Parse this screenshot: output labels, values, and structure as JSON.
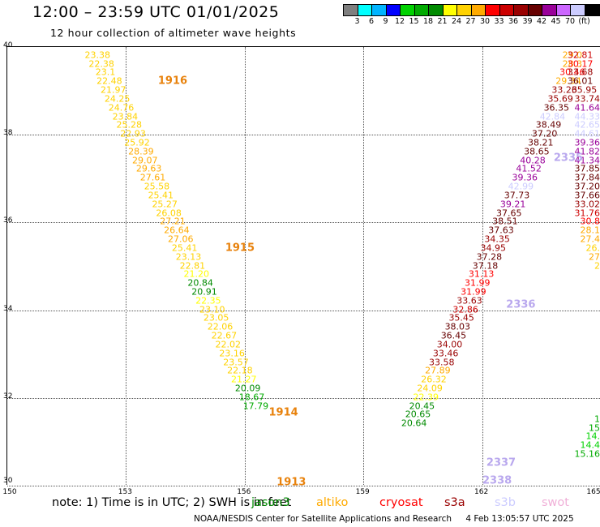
{
  "header": {
    "title": "12:00 – 23:59 UTC 01/01/2025",
    "subtitle": "12 hour collection of altimeter wave heights"
  },
  "colorbar": {
    "unit": "(ft)",
    "colors": [
      "#7f7f7f",
      "#00ffff",
      "#00b4ff",
      "#0000ff",
      "#00d200",
      "#00aa00",
      "#008a00",
      "#ffff00",
      "#ffd200",
      "#ffaa00",
      "#ff0000",
      "#cc0000",
      "#990000",
      "#660000",
      "#990099",
      "#cc66ff",
      "#ccccff",
      "#000000"
    ],
    "tick_labels": [
      "3",
      "6",
      "9",
      "12",
      "15",
      "18",
      "21",
      "24",
      "27",
      "30",
      "33",
      "36",
      "39",
      "42",
      "45",
      "70"
    ]
  },
  "axes": {
    "x_ticks": [
      "150",
      "153",
      "156",
      "159",
      "162",
      "165"
    ],
    "y_ticks": [
      "40",
      "38",
      "36",
      "34",
      "32",
      "30"
    ]
  },
  "orbit_labels": [
    {
      "text": "1916",
      "lon": 154.2,
      "lat": 39.2,
      "color": "orange"
    },
    {
      "text": "1915",
      "lon": 155.9,
      "lat": 35.4,
      "color": "orange"
    },
    {
      "text": "1914",
      "lon": 157.0,
      "lat": 31.65,
      "color": "orange"
    },
    {
      "text": "1913",
      "lon": 157.2,
      "lat": 30.05,
      "color": "orange"
    },
    {
      "text": "2336",
      "lon": 163.0,
      "lat": 34.1,
      "color": "lilac"
    },
    {
      "text": "2337",
      "lon": 162.5,
      "lat": 30.5,
      "color": "lilac"
    },
    {
      "text": "2338",
      "lon": 162.4,
      "lat": 30.1,
      "color": "lilac"
    },
    {
      "text": "2335",
      "lon": 164.2,
      "lat": 37.45,
      "color": "lilac"
    }
  ],
  "wave_tracks": [
    {
      "name": "track-1916-1915-1914-1913",
      "points": [
        {
          "lon": 152.3,
          "lat": 39.8,
          "value": "23.38",
          "color": "#ffd200"
        },
        {
          "lon": 152.4,
          "lat": 39.6,
          "value": "22.38",
          "color": "#ffd200"
        },
        {
          "lon": 152.5,
          "lat": 39.4,
          "value": "23.1",
          "color": "#ffd200"
        },
        {
          "lon": 152.6,
          "lat": 39.2,
          "value": "22.48",
          "color": "#ffd200"
        },
        {
          "lon": 152.7,
          "lat": 39.0,
          "value": "21.97",
          "color": "#ffd200"
        },
        {
          "lon": 152.8,
          "lat": 38.8,
          "value": "24.25",
          "color": "#ffd200"
        },
        {
          "lon": 152.9,
          "lat": 38.6,
          "value": "24.76",
          "color": "#ffd200"
        },
        {
          "lon": 153.0,
          "lat": 38.4,
          "value": "23.84",
          "color": "#ffd200"
        },
        {
          "lon": 153.1,
          "lat": 38.2,
          "value": "25.28",
          "color": "#ffd200"
        },
        {
          "lon": 153.2,
          "lat": 38.0,
          "value": "22.93",
          "color": "#ffd200"
        },
        {
          "lon": 153.3,
          "lat": 37.8,
          "value": "25.92",
          "color": "#ffd200"
        },
        {
          "lon": 153.4,
          "lat": 37.6,
          "value": "28.39",
          "color": "#ffaa00"
        },
        {
          "lon": 153.5,
          "lat": 37.4,
          "value": "29.07",
          "color": "#ffaa00"
        },
        {
          "lon": 153.6,
          "lat": 37.2,
          "value": "29.63",
          "color": "#ffaa00"
        },
        {
          "lon": 153.7,
          "lat": 37.0,
          "value": "27.61",
          "color": "#ffaa00"
        },
        {
          "lon": 153.8,
          "lat": 36.8,
          "value": "25.58",
          "color": "#ffd200"
        },
        {
          "lon": 153.9,
          "lat": 36.6,
          "value": "25.41",
          "color": "#ffd200"
        },
        {
          "lon": 154.0,
          "lat": 36.4,
          "value": "25.27",
          "color": "#ffd200"
        },
        {
          "lon": 154.1,
          "lat": 36.2,
          "value": "26.08",
          "color": "#ffd200"
        },
        {
          "lon": 154.2,
          "lat": 36.0,
          "value": "27.21",
          "color": "#ffaa00"
        },
        {
          "lon": 154.3,
          "lat": 35.8,
          "value": "26.64",
          "color": "#ffaa00"
        },
        {
          "lon": 154.4,
          "lat": 35.6,
          "value": "27.06",
          "color": "#ffaa00"
        },
        {
          "lon": 154.5,
          "lat": 35.4,
          "value": "25.41",
          "color": "#ffd200"
        },
        {
          "lon": 154.6,
          "lat": 35.2,
          "value": "23.13",
          "color": "#ffd200"
        },
        {
          "lon": 154.7,
          "lat": 35.0,
          "value": "22.81",
          "color": "#ffd200"
        },
        {
          "lon": 154.8,
          "lat": 34.8,
          "value": "21.20",
          "color": "#ffff00"
        },
        {
          "lon": 154.9,
          "lat": 34.6,
          "value": "20.84",
          "color": "#008a00"
        },
        {
          "lon": 155.0,
          "lat": 34.4,
          "value": "20.91",
          "color": "#008a00"
        },
        {
          "lon": 155.1,
          "lat": 34.2,
          "value": "22.35",
          "color": "#ffff00"
        },
        {
          "lon": 155.2,
          "lat": 34.0,
          "value": "23.10",
          "color": "#ffd200"
        },
        {
          "lon": 155.3,
          "lat": 33.8,
          "value": "23.05",
          "color": "#ffd200"
        },
        {
          "lon": 155.4,
          "lat": 33.6,
          "value": "22.06",
          "color": "#ffd200"
        },
        {
          "lon": 155.5,
          "lat": 33.4,
          "value": "22.67",
          "color": "#ffd200"
        },
        {
          "lon": 155.6,
          "lat": 33.2,
          "value": "22.02",
          "color": "#ffd200"
        },
        {
          "lon": 155.7,
          "lat": 33.0,
          "value": "23.16",
          "color": "#ffd200"
        },
        {
          "lon": 155.8,
          "lat": 32.8,
          "value": "23.57",
          "color": "#ffd200"
        },
        {
          "lon": 155.9,
          "lat": 32.6,
          "value": "22.18",
          "color": "#ffd200"
        },
        {
          "lon": 156.0,
          "lat": 32.4,
          "value": "21.27",
          "color": "#ffff00"
        },
        {
          "lon": 156.1,
          "lat": 32.2,
          "value": "20.09",
          "color": "#008a00"
        },
        {
          "lon": 156.2,
          "lat": 32.0,
          "value": "18.67",
          "color": "#00aa00"
        },
        {
          "lon": 156.3,
          "lat": 31.8,
          "value": "17.79",
          "color": "#00aa00"
        }
      ]
    },
    {
      "name": "track-2336-2337-2338",
      "points": [
        {
          "lon": 164.3,
          "lat": 39.8,
          "value": "29.0",
          "color": "#ffaa00"
        },
        {
          "lon": 164.3,
          "lat": 39.6,
          "value": "28.3",
          "color": "#ffaa00"
        },
        {
          "lon": 164.3,
          "lat": 39.4,
          "value": "30.46",
          "color": "#ff0000"
        },
        {
          "lon": 164.2,
          "lat": 39.2,
          "value": "29.34",
          "color": "#ffaa00"
        },
        {
          "lon": 164.1,
          "lat": 39.0,
          "value": "33.26",
          "color": "#990000"
        },
        {
          "lon": 164.0,
          "lat": 38.8,
          "value": "35.69",
          "color": "#990000"
        },
        {
          "lon": 163.9,
          "lat": 38.6,
          "value": "36.35",
          "color": "#660000"
        },
        {
          "lon": 163.8,
          "lat": 38.4,
          "value": "42.84",
          "color": "#ccccff"
        },
        {
          "lon": 163.7,
          "lat": 38.2,
          "value": "38.49",
          "color": "#660000"
        },
        {
          "lon": 163.6,
          "lat": 38.0,
          "value": "37.20",
          "color": "#660000"
        },
        {
          "lon": 163.5,
          "lat": 37.8,
          "value": "38.21",
          "color": "#660000"
        },
        {
          "lon": 163.4,
          "lat": 37.6,
          "value": "38.65",
          "color": "#660000"
        },
        {
          "lon": 163.3,
          "lat": 37.4,
          "value": "40.28",
          "color": "#990099"
        },
        {
          "lon": 163.2,
          "lat": 37.2,
          "value": "41.52",
          "color": "#990099"
        },
        {
          "lon": 163.1,
          "lat": 37.0,
          "value": "39.36",
          "color": "#990099"
        },
        {
          "lon": 163.0,
          "lat": 36.8,
          "value": "42.99",
          "color": "#ccccff"
        },
        {
          "lon": 162.9,
          "lat": 36.6,
          "value": "37.73",
          "color": "#660000"
        },
        {
          "lon": 162.8,
          "lat": 36.4,
          "value": "39.21",
          "color": "#990099"
        },
        {
          "lon": 162.7,
          "lat": 36.2,
          "value": "37.65",
          "color": "#660000"
        },
        {
          "lon": 162.6,
          "lat": 36.0,
          "value": "38.51",
          "color": "#660000"
        },
        {
          "lon": 162.5,
          "lat": 35.8,
          "value": "37.63",
          "color": "#660000"
        },
        {
          "lon": 162.4,
          "lat": 35.6,
          "value": "34.35",
          "color": "#990000"
        },
        {
          "lon": 162.3,
          "lat": 35.4,
          "value": "34.95",
          "color": "#990000"
        },
        {
          "lon": 162.2,
          "lat": 35.2,
          "value": "37.28",
          "color": "#660000"
        },
        {
          "lon": 162.1,
          "lat": 35.0,
          "value": "37.18",
          "color": "#660000"
        },
        {
          "lon": 162.0,
          "lat": 34.8,
          "value": "31.13",
          "color": "#ff0000"
        },
        {
          "lon": 161.9,
          "lat": 34.6,
          "value": "31.99",
          "color": "#ff0000"
        },
        {
          "lon": 161.8,
          "lat": 34.4,
          "value": "31.99",
          "color": "#ff0000"
        },
        {
          "lon": 161.7,
          "lat": 34.2,
          "value": "33.63",
          "color": "#990000"
        },
        {
          "lon": 161.6,
          "lat": 34.0,
          "value": "32.86",
          "color": "#cc0000"
        },
        {
          "lon": 161.5,
          "lat": 33.8,
          "value": "35.45",
          "color": "#990000"
        },
        {
          "lon": 161.4,
          "lat": 33.6,
          "value": "38.03",
          "color": "#660000"
        },
        {
          "lon": 161.3,
          "lat": 33.4,
          "value": "36.45",
          "color": "#660000"
        },
        {
          "lon": 161.2,
          "lat": 33.2,
          "value": "34.00",
          "color": "#990000"
        },
        {
          "lon": 161.1,
          "lat": 33.0,
          "value": "33.46",
          "color": "#990000"
        },
        {
          "lon": 161.0,
          "lat": 32.8,
          "value": "33.58",
          "color": "#990000"
        },
        {
          "lon": 160.9,
          "lat": 32.6,
          "value": "27.89",
          "color": "#ffaa00"
        },
        {
          "lon": 160.8,
          "lat": 32.4,
          "value": "26.32",
          "color": "#ffd200"
        },
        {
          "lon": 160.7,
          "lat": 32.2,
          "value": "24.09",
          "color": "#ffd200"
        },
        {
          "lon": 160.6,
          "lat": 32.0,
          "value": "22.39",
          "color": "#ffff00"
        },
        {
          "lon": 160.5,
          "lat": 31.8,
          "value": "20.45",
          "color": "#008a00"
        },
        {
          "lon": 160.4,
          "lat": 31.6,
          "value": "20.65",
          "color": "#008a00"
        },
        {
          "lon": 160.3,
          "lat": 31.4,
          "value": "20.64",
          "color": "#008a00"
        }
      ]
    },
    {
      "name": "track-2335-right",
      "points": [
        {
          "lon": 164.5,
          "lat": 39.8,
          "value": "32.81",
          "color": "#cc0000"
        },
        {
          "lon": 164.5,
          "lat": 39.6,
          "value": "30.17",
          "color": "#ff0000"
        },
        {
          "lon": 164.5,
          "lat": 39.4,
          "value": "33.68",
          "color": "#990000"
        },
        {
          "lon": 164.5,
          "lat": 39.2,
          "value": "36.01",
          "color": "#660000"
        },
        {
          "lon": 164.6,
          "lat": 39.0,
          "value": "35.95",
          "color": "#990000"
        },
        {
          "lon": 164.7,
          "lat": 38.8,
          "value": "33.74",
          "color": "#990000"
        },
        {
          "lon": 164.8,
          "lat": 38.6,
          "value": "41.64",
          "color": "#990099"
        },
        {
          "lon": 164.9,
          "lat": 38.4,
          "value": "44.33",
          "color": "#ccccff"
        },
        {
          "lon": 165.0,
          "lat": 38.2,
          "value": "42.65",
          "color": "#ccccff"
        },
        {
          "lon": 165.0,
          "lat": 38.0,
          "value": "44.61",
          "color": "#ccccff"
        },
        {
          "lon": 165.1,
          "lat": 37.8,
          "value": "39.36",
          "color": "#990099"
        },
        {
          "lon": 165.2,
          "lat": 37.6,
          "value": "41.82",
          "color": "#990099"
        },
        {
          "lon": 165.3,
          "lat": 37.4,
          "value": "41.34",
          "color": "#990099"
        },
        {
          "lon": 165.3,
          "lat": 37.2,
          "value": "37.85",
          "color": "#660000"
        },
        {
          "lon": 165.3,
          "lat": 37.0,
          "value": "37.84",
          "color": "#660000"
        },
        {
          "lon": 165.3,
          "lat": 36.8,
          "value": "37.20",
          "color": "#660000"
        },
        {
          "lon": 165.4,
          "lat": 36.6,
          "value": "37.66",
          "color": "#660000"
        },
        {
          "lon": 165.5,
          "lat": 36.4,
          "value": "33.02",
          "color": "#990000"
        },
        {
          "lon": 165.6,
          "lat": 36.2,
          "value": "31.76",
          "color": "#cc0000"
        },
        {
          "lon": 165.7,
          "lat": 36.0,
          "value": "30.8",
          "color": "#ff0000"
        },
        {
          "lon": 165.8,
          "lat": 35.8,
          "value": "28.1",
          "color": "#ffaa00"
        },
        {
          "lon": 165.85,
          "lat": 35.6,
          "value": "27.4",
          "color": "#ffaa00"
        },
        {
          "lon": 165.9,
          "lat": 35.4,
          "value": "26.",
          "color": "#ffd200"
        },
        {
          "lon": 165.95,
          "lat": 35.2,
          "value": "27",
          "color": "#ffaa00"
        },
        {
          "lon": 166.0,
          "lat": 35.0,
          "value": "2",
          "color": "#ffd200"
        },
        {
          "lon": 165.9,
          "lat": 31.5,
          "value": "1",
          "color": "#00aa00"
        },
        {
          "lon": 165.8,
          "lat": 31.3,
          "value": "15",
          "color": "#00aa00"
        },
        {
          "lon": 165.7,
          "lat": 31.1,
          "value": "14.",
          "color": "#00d200"
        },
        {
          "lon": 165.6,
          "lat": 30.9,
          "value": "14.4",
          "color": "#00d200"
        },
        {
          "lon": 165.5,
          "lat": 30.7,
          "value": "15.16",
          "color": "#00aa00"
        }
      ]
    }
  ],
  "legend": {
    "note": "note: 1) Time is in UTC; 2) SWH is in feet",
    "missions": [
      {
        "label": "jason3",
        "color": "#008a00"
      },
      {
        "label": "altiko",
        "color": "#ffaa00"
      },
      {
        "label": "cryosat",
        "color": "#ff0000"
      },
      {
        "label": "s3a",
        "color": "#990000"
      },
      {
        "label": "s3b",
        "color": "#ccccff"
      },
      {
        "label": "swot",
        "color": "#f0b0d8"
      }
    ]
  },
  "footer": {
    "credit": "NOAA/NESDIS Center for Satellite Applications and Research",
    "timestamp": "4 Feb 13:05:57 UTC 2025"
  }
}
